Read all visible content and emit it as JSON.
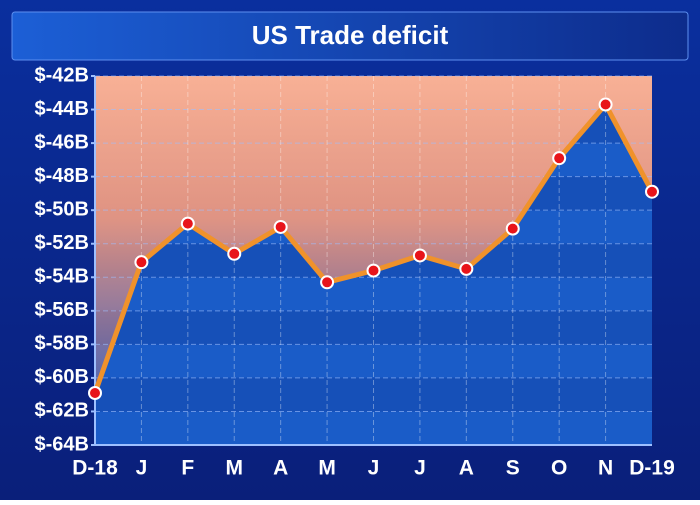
{
  "chart_data": {
    "type": "line",
    "title": "US Trade deficit",
    "categories": [
      "D-18",
      "J",
      "F",
      "M",
      "A",
      "M",
      "J",
      "J",
      "A",
      "S",
      "O",
      "N",
      "D-19"
    ],
    "values": [
      -60.9,
      -53.1,
      -50.8,
      -52.6,
      -51.0,
      -54.3,
      -53.6,
      -52.7,
      -53.5,
      -51.1,
      -46.9,
      -43.7,
      -48.9
    ],
    "color": "#f0922b",
    "marker_color": "#e8141a",
    "ylim": [
      -64,
      -42
    ],
    "yticks": [
      {
        "value": -64,
        "label": "$-64B"
      },
      {
        "value": -62,
        "label": "$-62B"
      },
      {
        "value": -60,
        "label": "$-60B"
      },
      {
        "value": -58,
        "label": "$-58B"
      },
      {
        "value": -56,
        "label": "$-56B"
      },
      {
        "value": -54,
        "label": "$-54B"
      },
      {
        "value": -52,
        "label": "$-52B"
      },
      {
        "value": -50,
        "label": "$-50B"
      },
      {
        "value": -48,
        "label": "$-48B"
      },
      {
        "value": -46,
        "label": "$-46B"
      },
      {
        "value": -44,
        "label": "$-44B"
      },
      {
        "value": -42,
        "label": "$-42B"
      }
    ],
    "grid": true
  }
}
